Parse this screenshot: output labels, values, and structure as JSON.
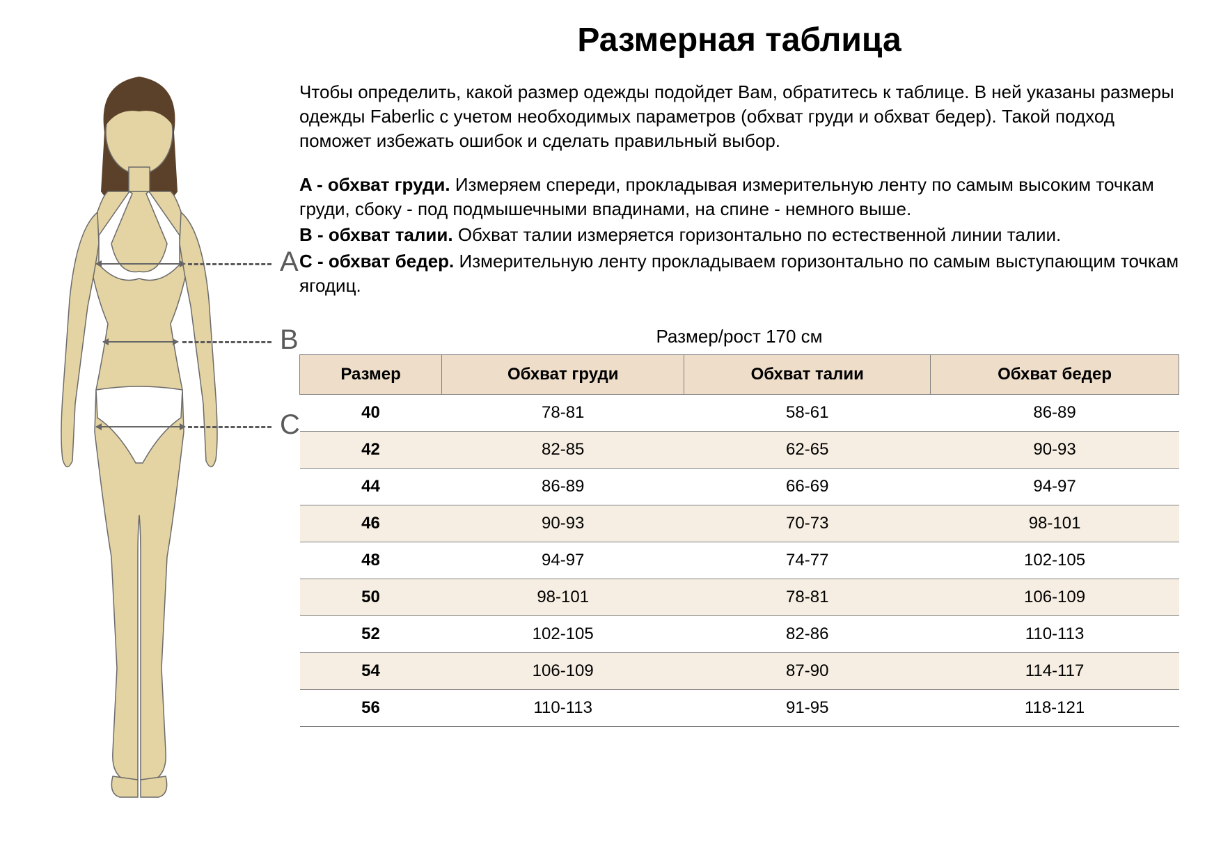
{
  "title": "Размерная таблица",
  "intro": "Чтобы определить, какой размер одежды подойдет Вам, обратитесь к таблице. В ней указаны размеры одежды Faberlic с учетом необходимых параметров (обхват груди и обхват бедер). Такой подход поможет избежать ошибок и сделать правильный выбор.",
  "definitions": [
    {
      "label": "A - обхват груди.",
      "text": " Измеряем спереди, прокладывая измерительную ленту по самым высоким точкам груди, сбоку - под подмышечными впадинами, на спине - немного выше."
    },
    {
      "label": "B - обхват талии.",
      "text": " Обхват талии измеряется горизонтально по естественной линии талии."
    },
    {
      "label": "C - обхват бедер.",
      "text": " Измерительную ленту прокладываем горизонтально по самым выступающим точкам ягодиц."
    }
  ],
  "markers": {
    "a": "A",
    "b": "B",
    "c": "C"
  },
  "table": {
    "caption": "Размер/рост 170 см",
    "columns": [
      "Размер",
      "Обхват груди",
      "Обхват талии",
      "Обхват бедер"
    ],
    "rows": [
      [
        "40",
        "78-81",
        "58-61",
        "86-89"
      ],
      [
        "42",
        "82-85",
        "62-65",
        "90-93"
      ],
      [
        "44",
        "86-89",
        "66-69",
        "94-97"
      ],
      [
        "46",
        "90-93",
        "70-73",
        "98-101"
      ],
      [
        "48",
        "94-97",
        "74-77",
        "102-105"
      ],
      [
        "50",
        "98-101",
        "78-81",
        "106-109"
      ],
      [
        "52",
        "102-105",
        "82-86",
        "110-113"
      ],
      [
        "54",
        "106-109",
        "87-90",
        "114-117"
      ],
      [
        "56",
        "110-113",
        "91-95",
        "118-121"
      ]
    ],
    "header_bg": "#edddc9",
    "row_odd_bg": "#f6eee2",
    "row_even_bg": "#ffffff",
    "border_color": "#808080"
  },
  "figure": {
    "skin_color": "#e4d3a3",
    "hair_color": "#5b4129",
    "underwear_color": "#ffffff",
    "outline_color": "#6b6b6b",
    "marker_color": "#5a5a5a"
  }
}
